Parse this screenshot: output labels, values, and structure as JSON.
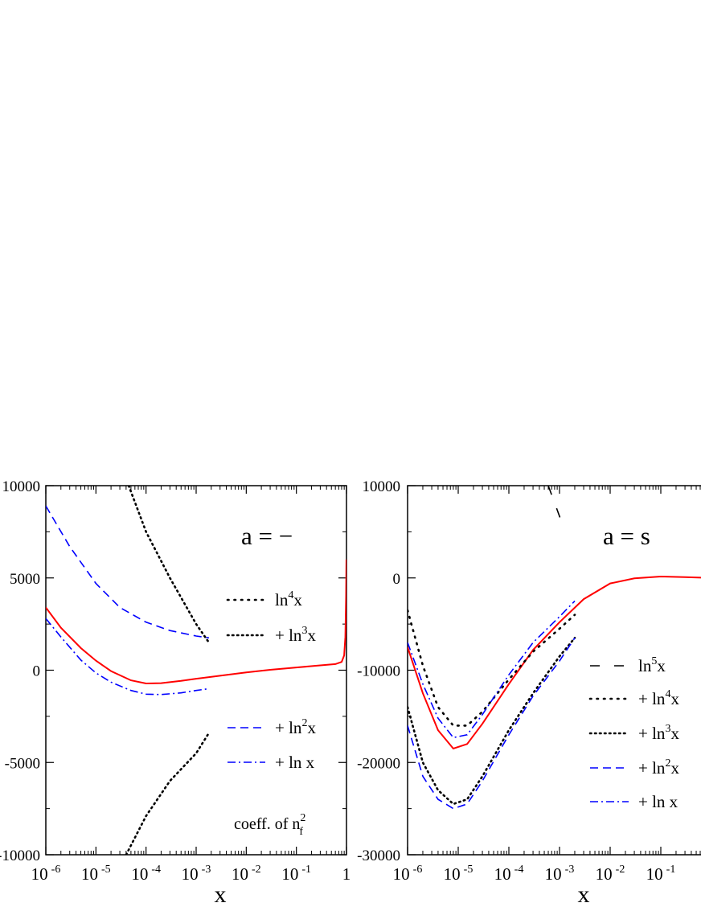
{
  "chart_data": [
    {
      "type": "line",
      "xscale": "log",
      "xlim": [
        1e-06,
        1
      ],
      "ylim": [
        -10000,
        10000
      ],
      "yticks": [
        -10000,
        -5000,
        0,
        5000,
        10000
      ],
      "ytick_labels": [
        "-10000",
        "-5000",
        "0",
        "5000",
        "10000"
      ],
      "xtick_labels": [
        {
          "base": "10",
          "exp": "-6"
        },
        {
          "base": "10",
          "exp": "-5"
        },
        {
          "base": "10",
          "exp": "-4"
        },
        {
          "base": "10",
          "exp": "-3"
        },
        {
          "base": "10",
          "exp": "-2"
        },
        {
          "base": "10",
          "exp": "-1"
        },
        {
          "base": "1",
          "exp": ""
        }
      ],
      "xlabel": "x",
      "panel_label": "a = −",
      "note": {
        "text": "coeff. of n",
        "sub": "f",
        "sup": "2"
      },
      "legend": [
        {
          "text": "ln",
          "sup": "4",
          "suffix": "x",
          "style": "dot-sparse",
          "color": "#000000"
        },
        {
          "text": "+ ln",
          "sup": "3",
          "suffix": "x",
          "style": "dot",
          "color": "#000000"
        },
        {
          "text": "+ ln",
          "sup": "2",
          "suffix": "x",
          "style": "dash",
          "color": "#0000ff"
        },
        {
          "text": "+ ln x",
          "sup": "",
          "suffix": "",
          "style": "dashdot",
          "color": "#0000ff"
        }
      ],
      "series": [
        {
          "style": "solid",
          "color": "#ff0000",
          "points": [
            [
              1e-06,
              3400
            ],
            [
              2e-06,
              2300
            ],
            [
              5e-06,
              1200
            ],
            [
              1e-05,
              520
            ],
            [
              2e-05,
              -50
            ],
            [
              5e-05,
              -550
            ],
            [
              0.0001,
              -720
            ],
            [
              0.0002,
              -700
            ],
            [
              0.0005,
              -580
            ],
            [
              0.001,
              -460
            ],
            [
              0.003,
              -300
            ],
            [
              0.01,
              -120
            ],
            [
              0.03,
              20
            ],
            [
              0.1,
              150
            ],
            [
              0.3,
              260
            ],
            [
              0.6,
              330
            ],
            [
              0.8,
              450
            ],
            [
              0.9,
              800
            ],
            [
              0.95,
              1800
            ],
            [
              0.98,
              4000
            ],
            [
              0.995,
              6000
            ]
          ]
        },
        {
          "style": "dot",
          "color": "#000000",
          "points": [
            [
              4.5e-05,
              10000
            ],
            [
              0.0001,
              7500
            ],
            [
              0.0003,
              5000
            ],
            [
              0.001,
              2500
            ],
            [
              0.0018,
              1500
            ]
          ]
        },
        {
          "style": "dot",
          "color": "#000000",
          "points": [
            [
              4e-05,
              -10000
            ],
            [
              0.0001,
              -7900
            ],
            [
              0.0003,
              -6000
            ],
            [
              0.001,
              -4500
            ],
            [
              0.0018,
              -3400
            ]
          ]
        },
        {
          "style": "dash",
          "color": "#0000ff",
          "points": [
            [
              1e-06,
              8900
            ],
            [
              3e-06,
              6700
            ],
            [
              1e-05,
              4700
            ],
            [
              3e-05,
              3400
            ],
            [
              0.0001,
              2600
            ],
            [
              0.0003,
              2150
            ],
            [
              0.001,
              1850
            ],
            [
              0.0018,
              1750
            ]
          ]
        },
        {
          "style": "dashdot",
          "color": "#0000ff",
          "points": [
            [
              1e-06,
              2800
            ],
            [
              2e-06,
              1800
            ],
            [
              5e-06,
              550
            ],
            [
              1e-05,
              -150
            ],
            [
              2e-05,
              -650
            ],
            [
              5e-05,
              -1100
            ],
            [
              0.0001,
              -1300
            ],
            [
              0.0002,
              -1320
            ],
            [
              0.0005,
              -1230
            ],
            [
              0.001,
              -1100
            ],
            [
              0.0018,
              -1000
            ]
          ]
        }
      ]
    },
    {
      "type": "line",
      "xscale": "log",
      "xlim": [
        1e-06,
        1
      ],
      "ylim": [
        -30000,
        10000
      ],
      "yticks": [
        -30000,
        -20000,
        -10000,
        0,
        10000
      ],
      "ytick_labels": [
        "-30000",
        "-20000",
        "-10000",
        "0",
        "10000"
      ],
      "xtick_labels": [
        {
          "base": "10",
          "exp": "-6"
        },
        {
          "base": "10",
          "exp": "-5"
        },
        {
          "base": "10",
          "exp": "-4"
        },
        {
          "base": "10",
          "exp": "-3"
        },
        {
          "base": "10",
          "exp": "-2"
        },
        {
          "base": "10",
          "exp": "-1"
        }
      ],
      "xlabel": "x",
      "panel_label": "a = s",
      "legend": [
        {
          "text": "ln",
          "sup": "5",
          "suffix": "x",
          "style": "longdash",
          "color": "#000000"
        },
        {
          "text": "+ ln",
          "sup": "4",
          "suffix": "x",
          "style": "dot-sparse",
          "color": "#000000"
        },
        {
          "text": "+ ln",
          "sup": "3",
          "suffix": "x",
          "style": "dot",
          "color": "#000000"
        },
        {
          "text": "+ ln",
          "sup": "2",
          "suffix": "x",
          "style": "dash",
          "color": "#0000ff"
        },
        {
          "text": "+ ln x",
          "sup": "",
          "suffix": "",
          "style": "dashdot",
          "color": "#0000ff"
        }
      ],
      "series": [
        {
          "style": "solid",
          "color": "#ff0000",
          "points": [
            [
              1e-06,
              -7500
            ],
            [
              2e-06,
              -12500
            ],
            [
              4e-06,
              -16500
            ],
            [
              8e-06,
              -18500
            ],
            [
              1.5e-05,
              -18000
            ],
            [
              3e-05,
              -15800
            ],
            [
              0.0001,
              -11500
            ],
            [
              0.0003,
              -7800
            ],
            [
              0.001,
              -4800
            ],
            [
              0.003,
              -2300
            ],
            [
              0.01,
              -600
            ],
            [
              0.03,
              -50
            ],
            [
              0.1,
              150
            ],
            [
              0.3,
              80
            ],
            [
              1,
              0
            ]
          ]
        },
        {
          "style": "longdash",
          "color": "#000000",
          "points": [
            [
              0.0006,
              10000
            ],
            [
              0.0012,
              5500
            ]
          ]
        },
        {
          "style": "dot-sparse",
          "color": "#000000",
          "points": [
            [
              1e-06,
              -3500
            ],
            [
              2e-06,
              -9500
            ],
            [
              4e-06,
              -14000
            ],
            [
              8e-06,
              -16000
            ],
            [
              1.5e-05,
              -16000
            ],
            [
              3e-05,
              -14500
            ],
            [
              0.0001,
              -11000
            ],
            [
              0.0003,
              -8000
            ],
            [
              0.001,
              -5500
            ],
            [
              0.002,
              -4000
            ]
          ]
        },
        {
          "style": "dot",
          "color": "#000000",
          "points": [
            [
              1e-06,
              -14000
            ],
            [
              2e-06,
              -20000
            ],
            [
              4e-06,
              -23000
            ],
            [
              8e-06,
              -24500
            ],
            [
              1.5e-05,
              -24000
            ],
            [
              3e-05,
              -21500
            ],
            [
              0.0001,
              -16500
            ],
            [
              0.0003,
              -12500
            ],
            [
              0.001,
              -8500
            ],
            [
              0.002,
              -6500
            ]
          ]
        },
        {
          "style": "dash",
          "color": "#0000ff",
          "points": [
            [
              1e-06,
              -16000
            ],
            [
              2e-06,
              -21500
            ],
            [
              4e-06,
              -24000
            ],
            [
              8e-06,
              -25000
            ],
            [
              1.5e-05,
              -24500
            ],
            [
              3e-05,
              -22000
            ],
            [
              0.0001,
              -17000
            ],
            [
              0.0003,
              -12800
            ],
            [
              0.001,
              -9000
            ],
            [
              0.002,
              -6500
            ]
          ]
        },
        {
          "style": "dashdot",
          "color": "#0000ff",
          "points": [
            [
              1e-06,
              -7000
            ],
            [
              2e-06,
              -11500
            ],
            [
              4e-06,
              -15200
            ],
            [
              8e-06,
              -17300
            ],
            [
              1.5e-05,
              -17000
            ],
            [
              3e-05,
              -14800
            ],
            [
              0.0001,
              -10500
            ],
            [
              0.0003,
              -7000
            ],
            [
              0.001,
              -4200
            ],
            [
              0.002,
              -2500
            ]
          ]
        }
      ]
    }
  ]
}
